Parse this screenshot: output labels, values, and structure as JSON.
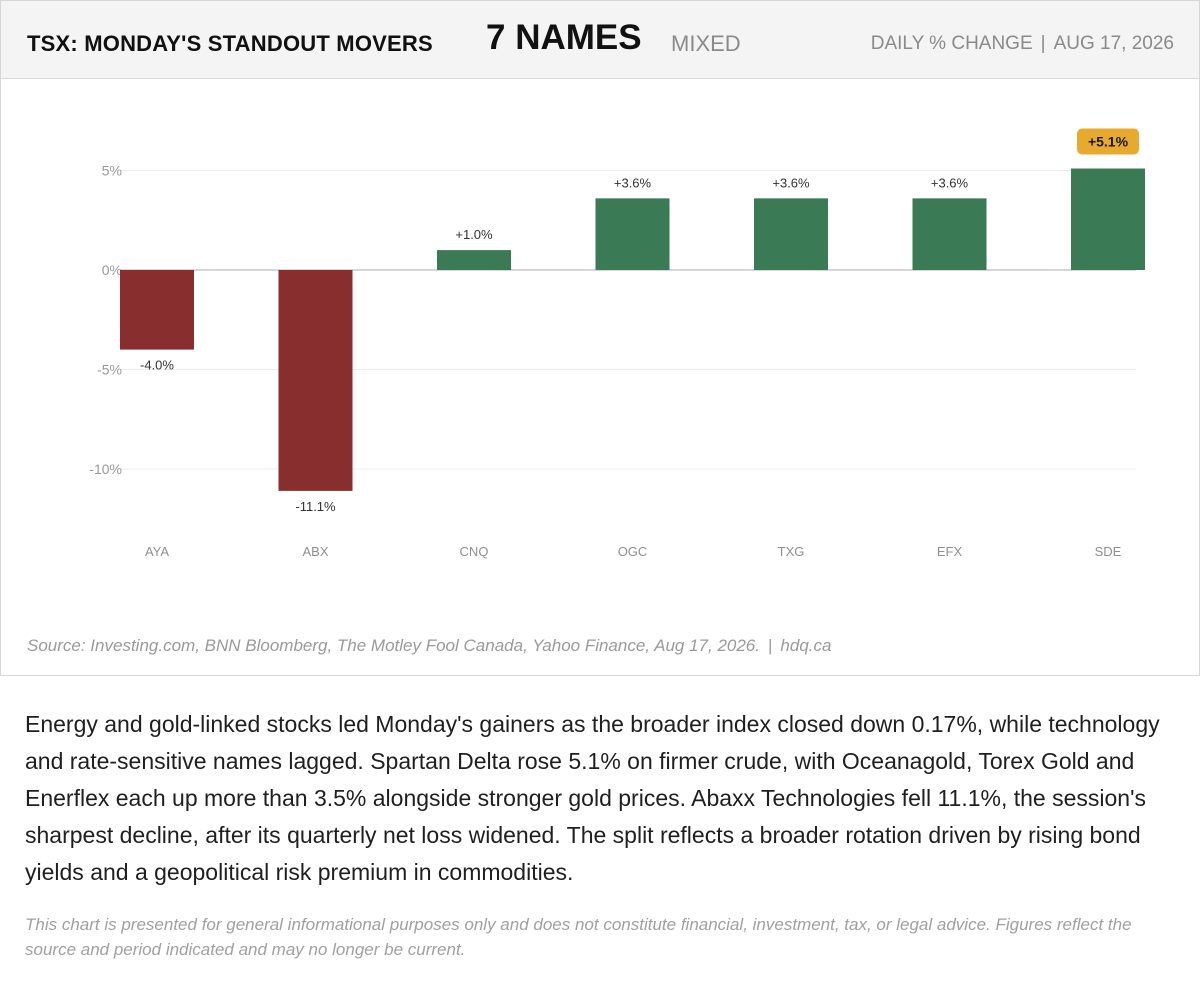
{
  "header": {
    "title": "TSX: MONDAY'S STANDOUT MOVERS",
    "count": "7 NAMES",
    "tone": "MIXED",
    "measure": "DAILY % CHANGE",
    "separator": "|",
    "date": "AUG 17, 2026"
  },
  "colors": {
    "positive": "#3a7a55",
    "negative": "#892e2f",
    "highlight_badge": "#e8a92f",
    "gridline": "#ececec",
    "zero_line": "#bdbdbd"
  },
  "chart_data": {
    "type": "bar",
    "categories": [
      "AYA",
      "ABX",
      "CNQ",
      "OGC",
      "TXG",
      "EFX",
      "SDE"
    ],
    "values": [
      -4.0,
      -11.1,
      1.0,
      3.6,
      3.6,
      3.6,
      5.1
    ],
    "value_labels": [
      "-4.0%",
      "-11.1%",
      "+1.0%",
      "+3.6%",
      "+3.6%",
      "+3.6%",
      "+5.1%"
    ],
    "highlight_index": 6,
    "y_ticks": [
      5,
      0,
      -5,
      -10
    ],
    "y_tick_labels": [
      "5%",
      "0%",
      "-5%",
      "-10%"
    ],
    "ylim": [
      -12,
      5.1
    ],
    "grid": true,
    "title": "",
    "xlabel": "",
    "ylabel": ""
  },
  "source": {
    "text": "Source: Investing.com, BNN Bloomberg, The Motley Fool Canada, Yahoo Finance, Aug 17, 2026.",
    "separator": "|",
    "site": "hdq.ca"
  },
  "summary": "Energy and gold-linked stocks led Monday's gainers as the broader index closed down 0.17%, while technology and rate-sensitive names lagged. Spartan Delta rose 5.1% on firmer crude, with Oceanagold, Torex Gold and Enerflex each up more than 3.5% alongside stronger gold prices. Abaxx Technologies fell 11.1%, the session's sharpest decline, after its quarterly net loss widened. The split reflects a broader rotation driven by rising bond yields and a geopolitical risk premium in commodities.",
  "disclaimer": "This chart is presented for general informational purposes only and does not constitute financial, investment, tax, or legal advice. Figures reflect the source and period indicated and may no longer be current."
}
